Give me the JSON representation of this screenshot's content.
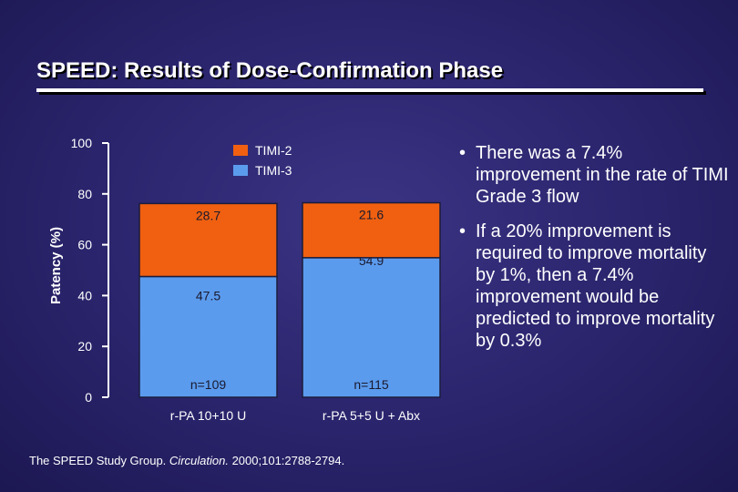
{
  "slide": {
    "title": "SPEED: Results of Dose-Confirmation Phase",
    "bullets": [
      "There was a 7.4% improvement in the rate of TIMI Grade 3 flow",
      "If a 20% improvement is required to improve mortality by 1%, then a 7.4% improvement would be predicted to improve mortality by 0.3%"
    ],
    "citation": {
      "authors": "The SPEED Study Group.",
      "journal": "Circulation.",
      "details": "2000;101:2788-2794."
    }
  },
  "chart_data": {
    "type": "bar",
    "stacked": true,
    "title": "",
    "xlabel": "",
    "ylabel": "Patency (%)",
    "ylim": [
      0,
      100
    ],
    "yticks": [
      0,
      20,
      40,
      60,
      80,
      100
    ],
    "categories": [
      "r-PA 10+10 U",
      "r-PA 5+5 U + Abx"
    ],
    "sample_sizes": [
      "n=109",
      "n=115"
    ],
    "series": [
      {
        "name": "TIMI-3",
        "values": [
          47.5,
          54.9
        ],
        "color": "#5b9bee"
      },
      {
        "name": "TIMI-2",
        "values": [
          28.7,
          21.6
        ],
        "color": "#f06010"
      }
    ],
    "legend": {
      "position": "top",
      "order": [
        "TIMI-2",
        "TIMI-3"
      ]
    },
    "grid": false,
    "colors": {
      "axis": "#ffffff",
      "bar_border": "#1c1c3c",
      "label_text": "#1a1a2e"
    }
  }
}
